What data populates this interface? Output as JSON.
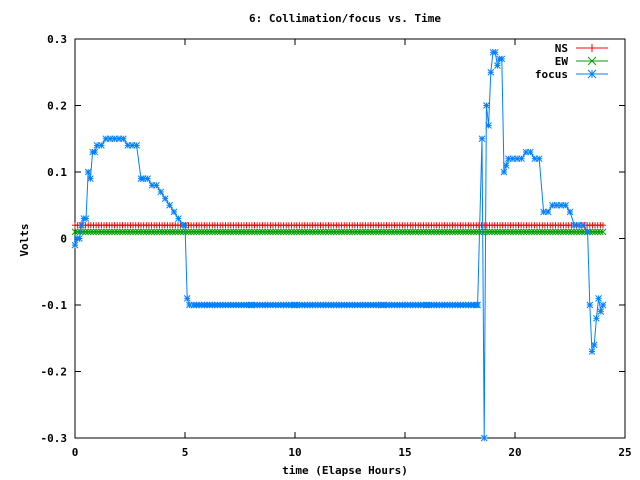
{
  "chart_data": {
    "type": "line",
    "title": "6: Collimation/focus vs. Time",
    "xlabel": "time (Elapse Hours)",
    "ylabel": "Volts",
    "xlim": [
      0,
      25
    ],
    "ylim": [
      -0.3,
      0.3
    ],
    "xticks": [
      0,
      5,
      10,
      15,
      20,
      25
    ],
    "xtick_labels": [
      "0",
      "5",
      "10",
      "15",
      "20",
      "25"
    ],
    "yticks": [
      -0.3,
      -0.2,
      -0.1,
      0,
      0.1,
      0.2,
      0.3
    ],
    "ytick_labels": [
      "-0.3",
      "-0.2",
      "-0.1",
      "0",
      "0.1",
      "0.2",
      "0.3"
    ],
    "grid": false,
    "legend_position": "top-right",
    "series": [
      {
        "name": "NS",
        "color": "#ff0000",
        "marker": "plus",
        "x": [
          0,
          24
        ],
        "y": [
          0.02,
          0.02
        ],
        "dense_markers": true
      },
      {
        "name": "EW",
        "color": "#00a000",
        "marker": "cross",
        "x": [
          0,
          24
        ],
        "y": [
          0.01,
          0.01
        ],
        "dense_markers": true
      },
      {
        "name": "focus",
        "color": "#0080ff",
        "marker": "star",
        "x": [
          0.0,
          0.1,
          0.2,
          0.3,
          0.4,
          0.5,
          0.6,
          0.7,
          0.8,
          0.9,
          1.0,
          1.2,
          1.4,
          1.6,
          1.8,
          2.0,
          2.2,
          2.4,
          2.6,
          2.8,
          3.0,
          3.1,
          3.3,
          3.5,
          3.7,
          3.9,
          4.1,
          4.3,
          4.5,
          4.7,
          4.9,
          5.0,
          5.1,
          5.2,
          5.4,
          6.0,
          8.0,
          10.0,
          12.0,
          14.0,
          16.0,
          18.0,
          18.3,
          18.5,
          18.6,
          18.7,
          18.8,
          18.9,
          19.0,
          19.1,
          19.2,
          19.3,
          19.4,
          19.5,
          19.6,
          19.7,
          19.9,
          20.1,
          20.3,
          20.5,
          20.7,
          20.9,
          21.1,
          21.3,
          21.5,
          21.7,
          21.9,
          22.1,
          22.3,
          22.5,
          22.7,
          22.9,
          23.1,
          23.3,
          23.4,
          23.5,
          23.6,
          23.7,
          23.8,
          23.9,
          24.0
        ],
        "y": [
          -0.01,
          0.0,
          0.0,
          0.02,
          0.03,
          0.03,
          0.1,
          0.09,
          0.13,
          0.13,
          0.14,
          0.14,
          0.15,
          0.15,
          0.15,
          0.15,
          0.15,
          0.14,
          0.14,
          0.14,
          0.09,
          0.09,
          0.09,
          0.08,
          0.08,
          0.07,
          0.06,
          0.05,
          0.04,
          0.03,
          0.02,
          0.02,
          -0.09,
          -0.1,
          -0.1,
          -0.1,
          -0.1,
          -0.1,
          -0.1,
          -0.1,
          -0.1,
          -0.1,
          -0.1,
          0.15,
          -0.3,
          0.2,
          0.17,
          0.25,
          0.28,
          0.28,
          0.26,
          0.27,
          0.27,
          0.1,
          0.11,
          0.12,
          0.12,
          0.12,
          0.12,
          0.13,
          0.13,
          0.12,
          0.12,
          0.04,
          0.04,
          0.05,
          0.05,
          0.05,
          0.05,
          0.04,
          0.02,
          0.02,
          0.02,
          0.01,
          -0.1,
          -0.17,
          -0.16,
          -0.12,
          -0.09,
          -0.11,
          -0.1
        ]
      }
    ]
  }
}
